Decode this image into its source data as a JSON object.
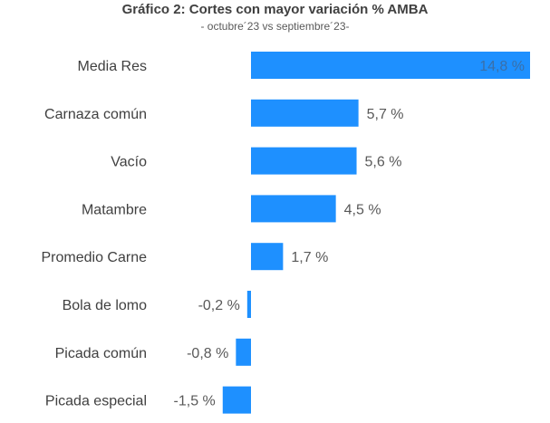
{
  "chart_data": {
    "type": "bar",
    "orientation": "horizontal",
    "title": "Gráfico 2: Cortes con mayor variación % AMBA",
    "subtitle": "- octubre´23 vs septiembre´23-",
    "categories": [
      "Media Res",
      "Carnaza común",
      "Vacío",
      "Matambre",
      "Promedio Carne",
      "Bola de lomo",
      "Picada común",
      "Picada especial"
    ],
    "values": [
      14.8,
      5.7,
      5.6,
      4.5,
      1.7,
      -0.2,
      -0.8,
      -1.5
    ],
    "value_labels": [
      "14,8 %",
      "5,7 %",
      "5,6 %",
      "4,5 %",
      "1,7 %",
      "-0,2 %",
      "-0,8 %",
      "-1,5 %"
    ],
    "xlabel": "",
    "ylabel": "",
    "xlim": [
      -1.5,
      14.8
    ],
    "grid": false,
    "legend": "none",
    "colors": {
      "bar": "#1E90FF",
      "label": "#595959",
      "inside_label": "#3A6FA8"
    }
  }
}
